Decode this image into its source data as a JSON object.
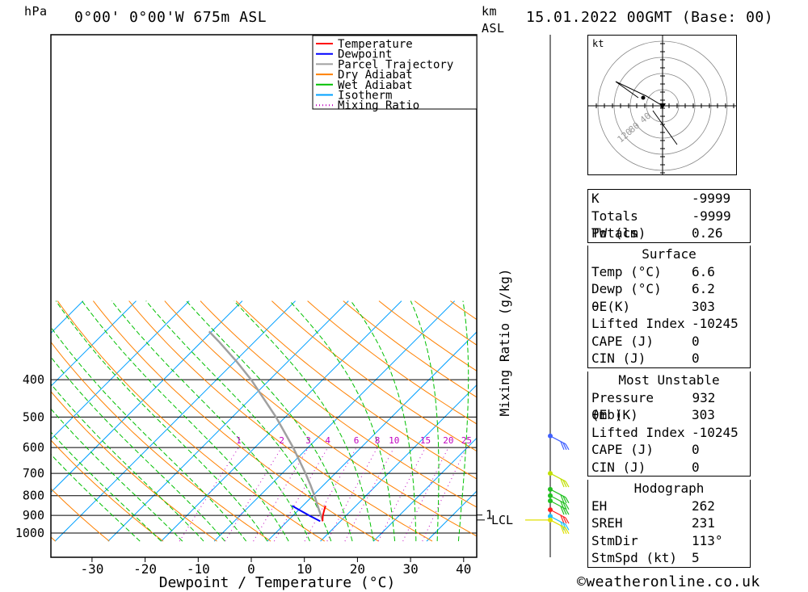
{
  "header": {
    "hpa_label": "hPa",
    "location": "0°00' 0°00'W 675m ASL",
    "km_label": "km",
    "asl_label": "ASL",
    "datetime": "15.01.2022 00GMT (Base: 00)"
  },
  "footer": {
    "copyright": "©weatheronline.co.uk"
  },
  "chart_data": {
    "type": "skew-t",
    "xlabel": "Dewpoint / Temperature (°C)",
    "ylabel_right": "Mixing Ratio (g/kg)",
    "y_axis_label": "hPa",
    "pressure_ticks": [
      400,
      500,
      600,
      700,
      800,
      900,
      1000
    ],
    "temperature_ticks": [
      -30,
      -20,
      -10,
      0,
      10,
      20,
      30,
      40
    ],
    "mixing_ratio_labels": [
      "1",
      "2",
      "3",
      "4",
      "6",
      "8",
      "10",
      "15",
      "20",
      "25"
    ],
    "km_ticks": [
      {
        "label": "1",
        "pressure": 898
      }
    ],
    "lcl": {
      "label": "LCL",
      "pressure": 925
    },
    "legend": [
      {
        "name": "Temperature",
        "color": "#ff0000"
      },
      {
        "name": "Dewpoint",
        "color": "#0000ff"
      },
      {
        "name": "Parcel Trajectory",
        "color": "#a0a0a0"
      },
      {
        "name": "Dry Adiabat",
        "color": "#ff8000"
      },
      {
        "name": "Wet Adiabat",
        "color": "#00c000"
      },
      {
        "name": "Isotherm",
        "color": "#00a0ff"
      },
      {
        "name": "Mixing Ratio",
        "color": "#c000c0"
      }
    ],
    "temperature_profile": [
      {
        "p": 932,
        "t": 6.6
      },
      {
        "p": 900,
        "t": 5.6
      },
      {
        "p": 870,
        "t": 4.8
      },
      {
        "p": 850,
        "t": 4.3
      }
    ],
    "dewpoint_profile": [
      {
        "p": 932,
        "t": 6.2
      },
      {
        "p": 900,
        "t": 3.0
      },
      {
        "p": 870,
        "t": 0.0
      },
      {
        "p": 850,
        "t": -2.0
      }
    ],
    "parcel_trajectory": [
      {
        "p": 925,
        "t": 6.4
      },
      {
        "p": 850,
        "t": 2.8
      },
      {
        "p": 800,
        "t": 0.3
      },
      {
        "p": 750,
        "t": -2.5
      },
      {
        "p": 700,
        "t": -5.6
      },
      {
        "p": 600,
        "t": -12.8
      },
      {
        "p": 500,
        "t": -21.8
      },
      {
        "p": 400,
        "t": -33.5
      },
      {
        "p": 360,
        "t": -39.5
      },
      {
        "p": 320,
        "t": -46.5
      },
      {
        "p": 300,
        "t": -50.5
      }
    ],
    "wind_profile": [
      {
        "p": 560,
        "color": "#4060ff"
      },
      {
        "p": 700,
        "color": "#c0e000"
      },
      {
        "p": 770,
        "color": "#20c020"
      },
      {
        "p": 800,
        "color": "#20c020"
      },
      {
        "p": 825,
        "color": "#20c020"
      },
      {
        "p": 870,
        "color": "#ff2020"
      },
      {
        "p": 905,
        "color": "#20c0ff"
      },
      {
        "p": 925,
        "color": "#e0e000"
      }
    ],
    "hodograph": {
      "unit_label": "kt",
      "ring_labels": [
        "40",
        "80",
        "120"
      ]
    }
  },
  "indices": [
    {
      "label": "K",
      "value": "-9999"
    },
    {
      "label": "Totals Totals",
      "value": "-9999"
    },
    {
      "label": "PW (cm)",
      "value": "0.26"
    }
  ],
  "surface": {
    "title": "Surface",
    "rows": [
      {
        "label": "Temp (°C)",
        "value": "6.6"
      },
      {
        "label": "Dewp (°C)",
        "value": "6.2"
      },
      {
        "label": "θE(K)",
        "value": "303"
      },
      {
        "label": "Lifted Index",
        "value": "-10245"
      },
      {
        "label": "CAPE (J)",
        "value": "0"
      },
      {
        "label": "CIN (J)",
        "value": "0"
      }
    ]
  },
  "most_unstable": {
    "title": "Most Unstable",
    "rows": [
      {
        "label": "Pressure (mb)",
        "value": "932"
      },
      {
        "label": "θE (K)",
        "value": "303"
      },
      {
        "label": "Lifted Index",
        "value": "-10245"
      },
      {
        "label": "CAPE (J)",
        "value": "0"
      },
      {
        "label": "CIN (J)",
        "value": "0"
      }
    ]
  },
  "hodograph_table": {
    "title": "Hodograph",
    "rows": [
      {
        "label": "EH",
        "value": "262"
      },
      {
        "label": "SREH",
        "value": "231"
      },
      {
        "label": "StmDir",
        "value": "113°"
      },
      {
        "label": "StmSpd (kt)",
        "value": "5"
      }
    ]
  }
}
